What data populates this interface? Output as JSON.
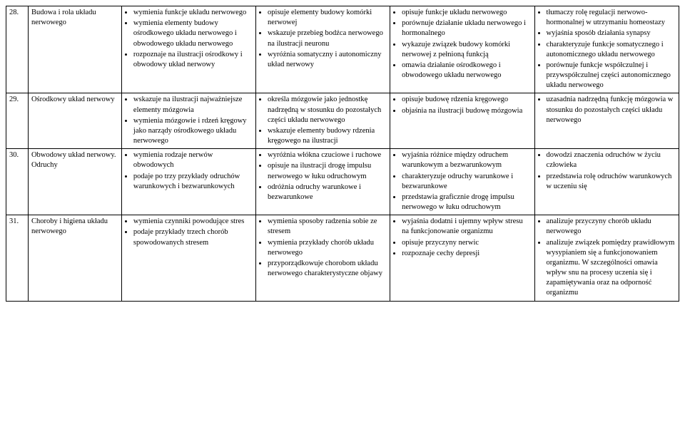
{
  "rows": [
    {
      "num": "28.",
      "topic": "Budowa i rola układu nerwowego",
      "c1": [
        "wymienia funkcje układu nerwowego",
        "wymienia elementy budowy ośrodkowego układu nerwowego i obwodowego układu nerwowego",
        "rozpoznaje na ilustracji ośrodkowy i obwodowy układ nerwowy"
      ],
      "c2": [
        "opisuje elementy budowy komórki nerwowej",
        "wskazuje przebieg bodźca nerwowego na ilustracji neuronu",
        "wyróżnia somatyczny i autonomiczny układ nerwowy"
      ],
      "c3": [
        "opisuje funkcje układu nerwowego",
        "porównuje działanie układu nerwowego i hormonalnego",
        "wykazuje związek budowy komórki nerwowej z pełnioną funkcją",
        "omawia działanie ośrodkowego i obwodowego układu nerwowego"
      ],
      "c4": [
        "tłumaczy rolę regulacji nerwowo-hormonalnej w utrzymaniu homeostazy",
        "wyjaśnia sposób działania synapsy",
        "charakteryzuje funkcje somatycznego i autonomicznego układu nerwowego",
        "porównuje funkcje współczulnej i przywspółczulnej części autonomicznego układu nerwowego"
      ]
    },
    {
      "num": "29.",
      "topic": "Ośrodkowy układ nerwowy",
      "c1": [
        "wskazuje na ilustracji najważniejsze elementy mózgowia",
        "wymienia mózgowie i rdzeń kręgowy jako narządy ośrodkowego układu nerwowego"
      ],
      "c2": [
        "określa mózgowie jako jednostkę nadrzędną w stosunku do pozostałych części układu nerwowego",
        "wskazuje elementy budowy rdzenia kręgowego na ilustracji"
      ],
      "c3": [
        "opisuje budowę rdzenia kręgowego",
        "objaśnia na ilustracji budowę mózgowia"
      ],
      "c4": [
        "uzasadnia nadrzędną funkcję mózgowia w stosunku do pozostałych części układu nerwowego"
      ]
    },
    {
      "num": "30.",
      "topic": "Obwodowy układ nerwowy. Odruchy",
      "c1": [
        "wymienia rodzaje nerwów obwodowych",
        "podaje po trzy przykłady odruchów warunkowych i bezwarunkowych"
      ],
      "c2": [
        "wyróżnia włókna czuciowe i ruchowe",
        "opisuje na ilustracji drogę impulsu nerwowego w łuku odruchowym",
        "odróżnia odruchy warunkowe i bezwarunkowe"
      ],
      "c3": [
        "wyjaśnia różnice między odruchem warunkowym a bezwarunkowym",
        "charakteryzuje odruchy warunkowe i bezwarunkowe",
        "przedstawia graficznie drogę impulsu nerwowego w łuku odruchowym"
      ],
      "c4": [
        "dowodzi znaczenia odruchów w życiu człowieka",
        "przedstawia rolę odruchów warunkowych w uczeniu się"
      ]
    },
    {
      "num": "31.",
      "topic": "Choroby i higiena układu nerwowego",
      "c1": [
        "wymienia czynniki powodujące stres",
        "podaje przykłady trzech chorób spowodowanych stresem"
      ],
      "c2": [
        "wymienia sposoby radzenia sobie ze stresem",
        "wymienia przykłady chorób układu nerwowego",
        "przyporządkowuje chorobom układu nerwowego charakterystyczne objawy"
      ],
      "c3": [
        "wyjaśnia dodatni i ujemny wpływ stresu na funkcjonowanie organizmu",
        "opisuje przyczyny nerwic",
        "rozpoznaje cechy depresji"
      ],
      "c4": [
        "analizuje przyczyny chorób układu nerwowego",
        "analizuje związek pomiędzy prawidłowym wysypianiem się a funkcjonowaniem organizmu. W szczególności omawia wpływ snu na procesy uczenia się i zapamiętywania oraz na odporność organizmu"
      ]
    }
  ]
}
